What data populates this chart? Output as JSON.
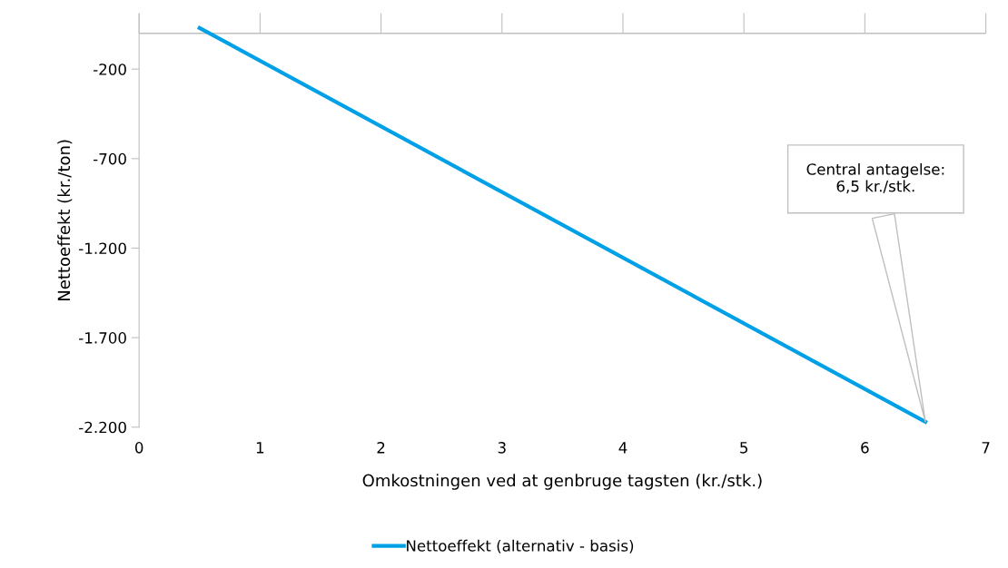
{
  "chart_data": {
    "type": "line",
    "xlabel": "Omkostningen ved at genbruge tagsten (kr./stk.)",
    "ylabel": "Nettoeffekt (kr./ton)",
    "series": [
      {
        "name": "Nettoeffekt (alternativ - basis)",
        "color": "#00a0e6",
        "x": [
          0.5,
          6.5
        ],
        "values": [
          30,
          -2170
        ]
      }
    ],
    "xlim": [
      0,
      7
    ],
    "xticks": [
      0,
      1,
      2,
      3,
      4,
      5,
      6,
      7
    ],
    "ylim": [
      -2200,
      110
    ],
    "yticks": [
      {
        "value": -200,
        "label": "-200"
      },
      {
        "value": -700,
        "label": "-700"
      },
      {
        "value": -1200,
        "label": "-1.200"
      },
      {
        "value": -1700,
        "label": "-1.700"
      },
      {
        "value": -2200,
        "label": "-2.200"
      }
    ],
    "ref_lines": [
      {
        "axis": "y",
        "value": 0,
        "color": "#bfbfbf"
      }
    ],
    "annotations": [
      "Central antagelse:\n6,5 kr./stk."
    ],
    "legend": "bottom",
    "grid": false,
    "marker": "none",
    "line_style": "solid"
  }
}
